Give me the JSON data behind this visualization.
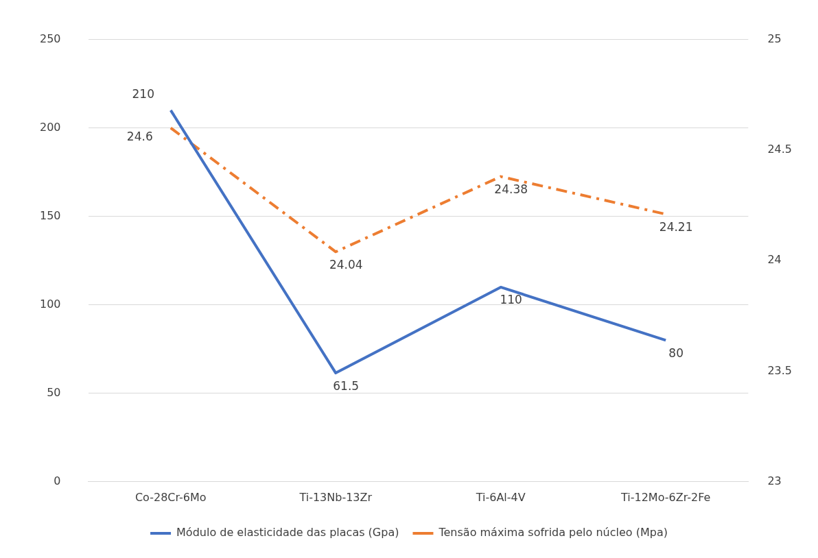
{
  "chart_data": {
    "type": "line",
    "categories": [
      "Co-28Cr-6Mo",
      "Ti-13Nb-13Zr",
      "Ti-6Al-4V",
      "Ti-12Mo-6Zr-2Fe"
    ],
    "series": [
      {
        "name": "Módulo de elasticidade das placas (Gpa)",
        "color": "#4472c4",
        "values": [
          210,
          61.5,
          110,
          80
        ],
        "line_style": "solid"
      },
      {
        "name": "Tensão máxima sofrida pelo núcleo (Mpa)",
        "color": "#ed7d31",
        "values": [
          24.6,
          24.04,
          24.38,
          24.21
        ],
        "axis": "y2",
        "line_style": "dashed"
      }
    ],
    "ylim": [
      0,
      250
    ],
    "yticks": [
      0,
      50,
      100,
      150,
      200,
      250
    ],
    "y2lim": [
      23,
      25
    ],
    "y2ticks": [
      23,
      23.5,
      24,
      24.5,
      25
    ],
    "grid": "y",
    "legend": "bottom",
    "data_labels": true,
    "marker": "none"
  }
}
